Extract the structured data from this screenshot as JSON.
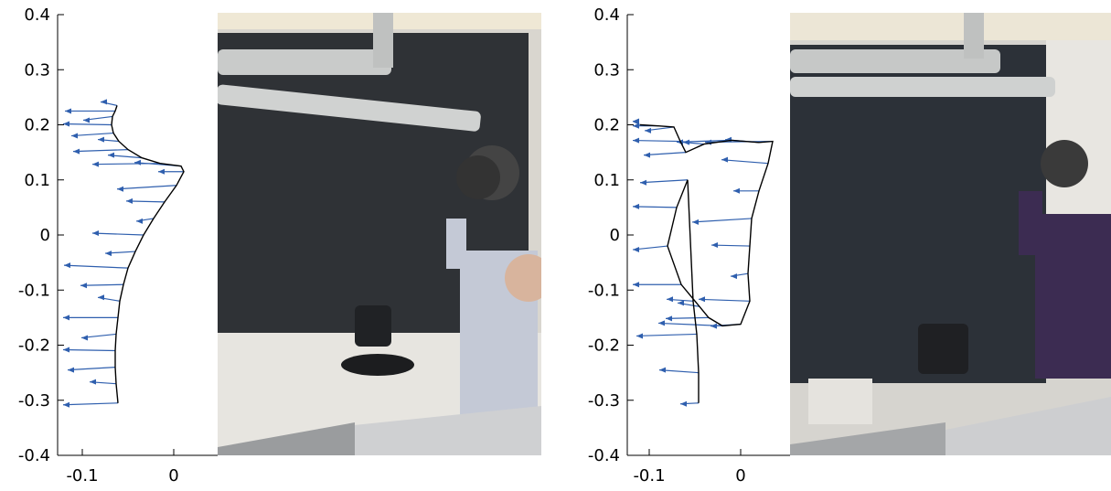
{
  "colors": {
    "arrow": "#2f5fae",
    "curve": "#000000",
    "backdrop": "#2f3236",
    "floor": "#e6e3de"
  },
  "chart_data": [
    {
      "type": "line",
      "ylim": [
        -0.4,
        0.4
      ],
      "xlim": [
        -0.13,
        0.02
      ],
      "yticks": [
        "0.4",
        "0.3",
        "0.2",
        "0.1",
        "0",
        "-0.1",
        "-0.2",
        "-0.3",
        "-0.4"
      ],
      "xticks": [
        "-0.1",
        "0"
      ],
      "series": [
        {
          "x": [
            -0.062,
            -0.064,
            -0.067,
            -0.068,
            -0.066,
            -0.06,
            -0.05,
            -0.035,
            -0.015,
            0.008,
            0.011,
            0.003,
            -0.01,
            -0.022,
            -0.033,
            -0.042,
            -0.05,
            -0.055,
            -0.059,
            -0.061,
            -0.063,
            -0.064,
            -0.064,
            -0.063,
            -0.061
          ],
          "y": [
            0.235,
            0.225,
            0.215,
            0.2,
            0.185,
            0.17,
            0.155,
            0.14,
            0.13,
            0.125,
            0.115,
            0.09,
            0.06,
            0.03,
            0.0,
            -0.03,
            -0.06,
            -0.09,
            -0.12,
            -0.15,
            -0.18,
            -0.21,
            -0.24,
            -0.27,
            -0.305
          ]
        }
      ]
    },
    {
      "type": "line",
      "ylim": [
        -0.4,
        0.4
      ],
      "xlim": [
        -0.13,
        0.04
      ],
      "yticks": [
        "0.4",
        "0.3",
        "0.2",
        "0.1",
        "0",
        "-0.1",
        "-0.2",
        "-0.3",
        "-0.4"
      ],
      "xticks": [
        "-0.1",
        "0"
      ],
      "series": [
        {
          "x": [
            -0.11,
            -0.09,
            -0.073,
            -0.066,
            -0.06,
            -0.04,
            -0.01,
            0.02,
            0.035,
            0.03,
            0.02,
            0.012,
            0.01,
            0.008,
            0.01,
            0.0,
            -0.02,
            -0.035,
            -0.045,
            -0.065,
            -0.08,
            -0.07,
            -0.058,
            -0.052,
            -0.048,
            -0.046,
            -0.046
          ],
          "y": [
            0.2,
            0.198,
            0.196,
            0.17,
            0.15,
            0.165,
            0.172,
            0.168,
            0.17,
            0.13,
            0.08,
            0.03,
            -0.02,
            -0.07,
            -0.12,
            -0.162,
            -0.165,
            -0.15,
            -0.13,
            -0.09,
            -0.02,
            0.05,
            0.1,
            -0.12,
            -0.18,
            -0.25,
            -0.305
          ]
        }
      ]
    }
  ]
}
